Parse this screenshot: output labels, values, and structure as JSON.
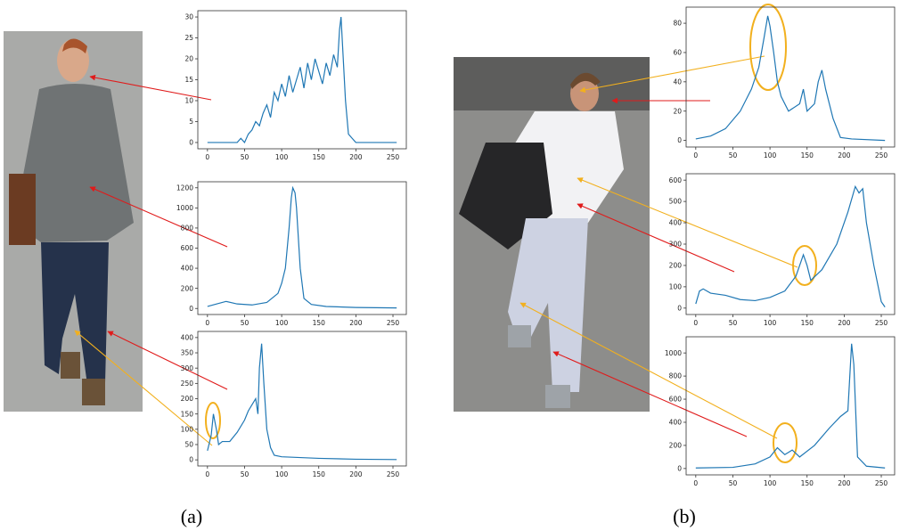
{
  "chart_data": [
    {
      "type": "line",
      "color": "#1f77b4",
      "x": [
        0,
        40,
        45,
        50,
        55,
        60,
        65,
        70,
        75,
        80,
        85,
        90,
        95,
        100,
        105,
        110,
        115,
        120,
        125,
        130,
        135,
        140,
        145,
        150,
        155,
        160,
        165,
        170,
        175,
        178,
        180,
        183,
        186,
        190,
        195,
        200,
        255
      ],
      "values": [
        0,
        0,
        1,
        0,
        2,
        3,
        5,
        4,
        7,
        9,
        6,
        12,
        10,
        14,
        11,
        16,
        12,
        15,
        18,
        13,
        19,
        15,
        20,
        17,
        14,
        19,
        16,
        21,
        18,
        27,
        30,
        20,
        10,
        2,
        1,
        0,
        0
      ],
      "xlim": [
        -13,
        268
      ],
      "ylim": [
        -1.5,
        31.5
      ],
      "xticks": [
        0,
        50,
        100,
        150,
        200,
        250
      ],
      "yticks": [
        0,
        5,
        10,
        15,
        20,
        25,
        30
      ]
    },
    {
      "type": "line",
      "color": "#1f77b4",
      "x": [
        0,
        10,
        25,
        40,
        60,
        80,
        95,
        100,
        105,
        110,
        113,
        115,
        118,
        120,
        125,
        130,
        140,
        160,
        200,
        255
      ],
      "values": [
        20,
        40,
        70,
        45,
        35,
        60,
        150,
        250,
        400,
        800,
        1100,
        1200,
        1150,
        1000,
        400,
        100,
        40,
        20,
        10,
        5
      ],
      "xlim": [
        -13,
        268
      ],
      "ylim": [
        -60,
        1260
      ],
      "xticks": [
        0,
        50,
        100,
        150,
        200,
        250
      ],
      "yticks": [
        0,
        200,
        400,
        600,
        800,
        1000,
        1200
      ]
    },
    {
      "type": "line",
      "color": "#1f77b4",
      "x": [
        0,
        5,
        8,
        12,
        15,
        20,
        30,
        40,
        50,
        55,
        60,
        65,
        68,
        70,
        73,
        76,
        80,
        85,
        90,
        100,
        150,
        200,
        255
      ],
      "values": [
        30,
        80,
        150,
        100,
        50,
        60,
        60,
        90,
        130,
        160,
        180,
        200,
        150,
        300,
        380,
        250,
        100,
        40,
        15,
        10,
        5,
        2,
        1
      ],
      "xlim": [
        -13,
        268
      ],
      "ylim": [
        -20,
        420
      ],
      "xticks": [
        0,
        50,
        100,
        150,
        200,
        250
      ],
      "yticks": [
        0,
        50,
        100,
        150,
        200,
        250,
        300,
        350,
        400
      ]
    },
    {
      "type": "line",
      "color": "#1f77b4",
      "x": [
        0,
        20,
        40,
        60,
        75,
        85,
        92,
        97,
        100,
        105,
        110,
        115,
        125,
        140,
        145,
        150,
        160,
        165,
        170,
        175,
        185,
        195,
        210,
        255
      ],
      "values": [
        1,
        3,
        8,
        20,
        35,
        50,
        70,
        85,
        78,
        60,
        40,
        30,
        20,
        25,
        35,
        20,
        25,
        40,
        48,
        35,
        15,
        2,
        1,
        0
      ],
      "xlim": [
        -13,
        268
      ],
      "ylim": [
        -4.5,
        91
      ],
      "xticks": [
        0,
        50,
        100,
        150,
        200,
        250
      ],
      "yticks": [
        0,
        20,
        40,
        60,
        80
      ]
    },
    {
      "type": "line",
      "color": "#1f77b4",
      "x": [
        0,
        5,
        10,
        20,
        40,
        60,
        80,
        100,
        120,
        135,
        140,
        145,
        150,
        155,
        170,
        190,
        205,
        215,
        220,
        225,
        230,
        240,
        250,
        255
      ],
      "values": [
        20,
        80,
        90,
        70,
        60,
        40,
        35,
        50,
        80,
        150,
        200,
        250,
        200,
        130,
        180,
        300,
        450,
        570,
        540,
        560,
        400,
        200,
        30,
        5
      ],
      "xlim": [
        -13,
        268
      ],
      "ylim": [
        -30,
        630
      ],
      "xticks": [
        0,
        50,
        100,
        150,
        200,
        250
      ],
      "yticks": [
        0,
        100,
        200,
        300,
        400,
        500,
        600
      ]
    },
    {
      "type": "line",
      "color": "#1f77b4",
      "x": [
        0,
        50,
        80,
        100,
        110,
        120,
        130,
        140,
        160,
        180,
        195,
        205,
        210,
        213,
        218,
        230,
        255
      ],
      "values": [
        5,
        10,
        40,
        100,
        180,
        120,
        160,
        100,
        200,
        350,
        450,
        500,
        1080,
        900,
        100,
        20,
        5
      ],
      "xlim": [
        -13,
        268
      ],
      "ylim": [
        -55,
        1140
      ],
      "xticks": [
        0,
        50,
        100,
        150,
        200,
        250
      ],
      "yticks": [
        0,
        200,
        400,
        600,
        800,
        1000
      ]
    }
  ],
  "captions": [
    "(a)",
    "(b)"
  ]
}
